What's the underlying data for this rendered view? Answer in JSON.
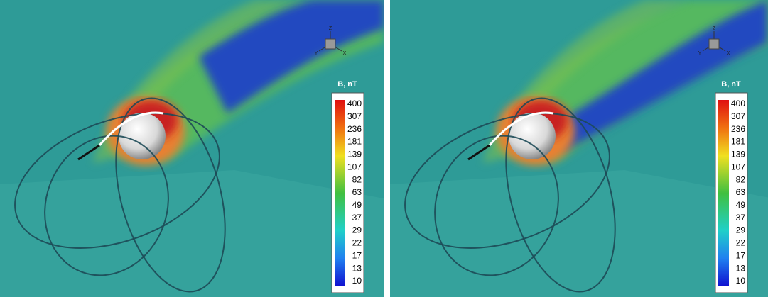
{
  "panels": [
    {
      "triad": {
        "z": "Z",
        "y": "Y",
        "x": "X"
      },
      "colorbar": {
        "title": "B, nT",
        "ticks": [
          400,
          307,
          236,
          181,
          139,
          107,
          82,
          63,
          49,
          37,
          29,
          22,
          17,
          13,
          10
        ]
      }
    },
    {
      "triad": {
        "z": "Z",
        "y": "Y",
        "x": "X"
      },
      "colorbar": {
        "title": "B, nT",
        "ticks": [
          400,
          307,
          236,
          181,
          139,
          107,
          82,
          63,
          49,
          37,
          29,
          22,
          17,
          13,
          10
        ]
      }
    }
  ]
}
